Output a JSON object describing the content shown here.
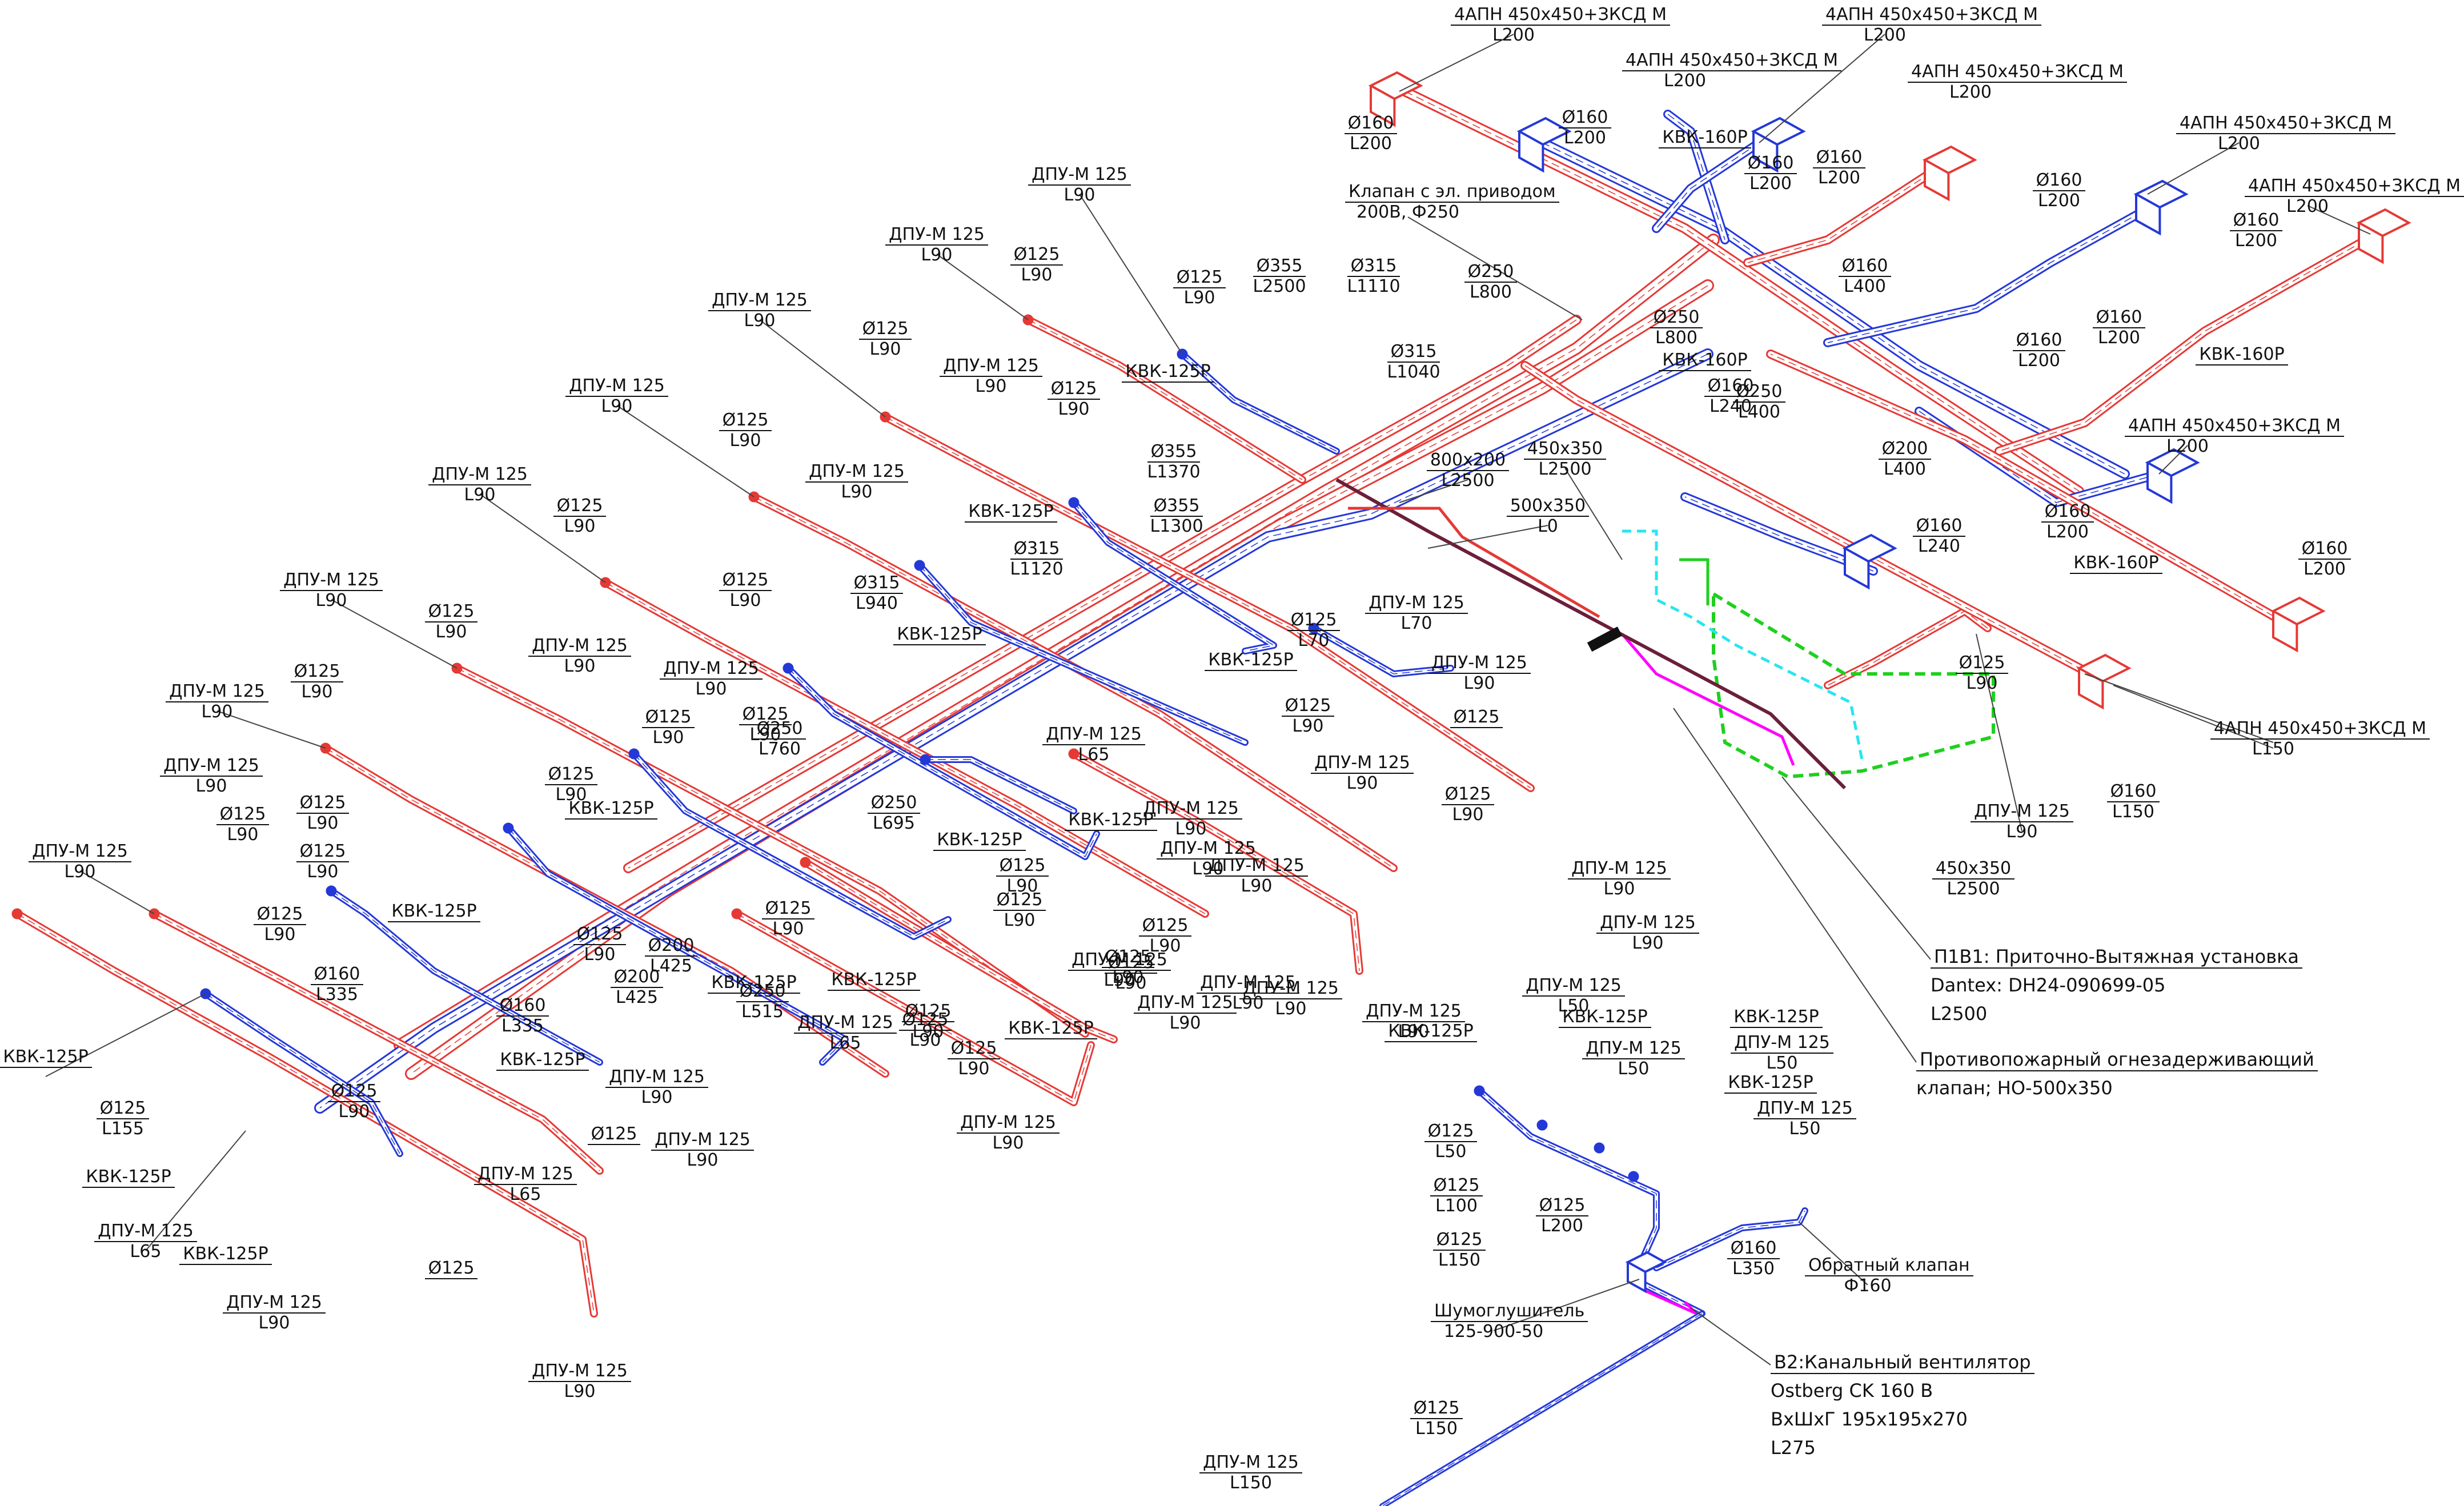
{
  "diagram": {
    "colors": {
      "supply": "#e53935",
      "exhaust": "#2438d8",
      "extra": "#1fd01f",
      "cyan": "#26e6f2",
      "magenta": "#ff00ff",
      "dark": "#6b1f3a"
    },
    "labels": [
      {
        "id": "l01",
        "a": "4АПН 450х450+ЗКСД М",
        "b": "L200"
      },
      {
        "id": "l02",
        "a": "4АПН 450х450+ЗКСД М",
        "b": "L200"
      },
      {
        "id": "l03",
        "a": "4АПН 450х450+ЗКСД М",
        "b": "L200"
      },
      {
        "id": "l04",
        "a": "4АПН 450х450+ЗКСД М",
        "b": "L200"
      },
      {
        "id": "l05",
        "a": "4АПН 450х450+ЗКСД М",
        "b": "L200"
      },
      {
        "id": "l06",
        "a": "4АПН 450х450+ЗКСД М",
        "b": "L200"
      },
      {
        "id": "l07",
        "a": "4АПН 450х450+ЗКСД М",
        "b": "L200"
      },
      {
        "id": "l08",
        "a": "4АПН 450х450+ЗКСД М",
        "b": "L150"
      },
      {
        "id": "l09",
        "a": "Ø160",
        "b": "L200"
      },
      {
        "id": "l10",
        "a": "Ø160",
        "b": "L200"
      },
      {
        "id": "l11",
        "a": "КВК-160Р",
        "b": ""
      },
      {
        "id": "l12",
        "a": "Ø160",
        "b": "L200"
      },
      {
        "id": "l13",
        "a": "Ø160",
        "b": "L200"
      },
      {
        "id": "l14",
        "a": "Ø160",
        "b": "L200"
      },
      {
        "id": "l15",
        "a": "Ø160",
        "b": "L200"
      },
      {
        "id": "l16",
        "a": "Ø160",
        "b": "L400"
      },
      {
        "id": "l17",
        "a": "Ø160",
        "b": "L200"
      },
      {
        "id": "l18",
        "a": "Ø160",
        "b": "L200"
      },
      {
        "id": "l19",
        "a": "КВК-160Р",
        "b": ""
      },
      {
        "id": "l20",
        "a": "Ø200",
        "b": "L400"
      },
      {
        "id": "l21",
        "a": "Ø160",
        "b": "L200"
      },
      {
        "id": "l22",
        "a": "КВК-160Р",
        "b": ""
      },
      {
        "id": "l23",
        "a": "Ø160",
        "b": "L200"
      },
      {
        "id": "l24",
        "a": "Ø160",
        "b": "L240"
      },
      {
        "id": "l25",
        "a": "Ø125",
        "b": "L90"
      },
      {
        "id": "l26",
        "a": "Ø160",
        "b": "L150"
      },
      {
        "id": "l27",
        "a": "ДПУ-М 125",
        "b": "L90"
      },
      {
        "id": "l28",
        "a": "Клапан с эл. приводом",
        "b": "200В, Ф250"
      },
      {
        "id": "l29",
        "a": "Ø355",
        "b": "L2500"
      },
      {
        "id": "l30",
        "a": "Ø315",
        "b": "L1110"
      },
      {
        "id": "l31",
        "a": "Ø250",
        "b": "L800"
      },
      {
        "id": "l32",
        "a": "Ø250",
        "b": "L800"
      },
      {
        "id": "l33",
        "a": "КВК-160Р",
        "b": ""
      },
      {
        "id": "l34",
        "a": "Ø250",
        "b": "L400"
      },
      {
        "id": "l35",
        "a": "Ø160",
        "b": "L240"
      },
      {
        "id": "l36",
        "a": "Ø315",
        "b": "L1040"
      },
      {
        "id": "l37",
        "a": "ДПУ-М 125",
        "b": "L90"
      },
      {
        "id": "l38",
        "a": "ДПУ-М 125",
        "b": "L90"
      },
      {
        "id": "l39",
        "a": "Ø125",
        "b": "L90"
      },
      {
        "id": "l40",
        "a": "Ø125",
        "b": "L90"
      },
      {
        "id": "l41",
        "a": "ДПУ-М 125",
        "b": "L90"
      },
      {
        "id": "l42",
        "a": "Ø125",
        "b": "L90"
      },
      {
        "id": "l43",
        "a": "ДПУ-М 125",
        "b": "L90"
      },
      {
        "id": "l44",
        "a": "Ø125",
        "b": "L90"
      },
      {
        "id": "l45",
        "a": "КВК-125Р",
        "b": ""
      },
      {
        "id": "l46",
        "a": "ДПУ-М 125",
        "b": "L90"
      },
      {
        "id": "l47",
        "a": "Ø125",
        "b": "L90"
      },
      {
        "id": "l48",
        "a": "ДПУ-М 125",
        "b": "L90"
      },
      {
        "id": "l49",
        "a": "Ø125",
        "b": "L90"
      },
      {
        "id": "l50",
        "a": "Ø355",
        "b": "L1370"
      },
      {
        "id": "l51",
        "a": "Ø355",
        "b": "L1300"
      },
      {
        "id": "l52",
        "a": "800х200",
        "b": "L2500"
      },
      {
        "id": "l53",
        "a": "450х350",
        "b": "L2500"
      },
      {
        "id": "l54",
        "a": "500х350",
        "b": "L0"
      },
      {
        "id": "l55",
        "a": "ДПУ-М 125",
        "b": "L90"
      },
      {
        "id": "l56",
        "a": "Ø125",
        "b": "L90"
      },
      {
        "id": "l57",
        "a": "КВК-125Р",
        "b": ""
      },
      {
        "id": "l58",
        "a": "Ø315",
        "b": "L1120"
      },
      {
        "id": "l59",
        "a": "ДПУ-М 125",
        "b": "L90"
      },
      {
        "id": "l60",
        "a": "Ø125",
        "b": "L90"
      },
      {
        "id": "l61",
        "a": "Ø315",
        "b": "L940"
      },
      {
        "id": "l62",
        "a": "КВК-125Р",
        "b": ""
      },
      {
        "id": "l63",
        "a": "ДПУ-М 125",
        "b": "L70"
      },
      {
        "id": "l64",
        "a": "Ø125",
        "b": "L70"
      },
      {
        "id": "l65",
        "a": "ДПУ-М 125",
        "b": "L90"
      },
      {
        "id": "l66",
        "a": "КВК-125Р",
        "b": ""
      },
      {
        "id": "l67",
        "a": "Ø125",
        "b": "L90"
      },
      {
        "id": "l68",
        "a": "ДПУ-М 125",
        "b": "L90"
      },
      {
        "id": "l69",
        "a": "ДПУ-М 125",
        "b": "L90"
      },
      {
        "id": "l70",
        "a": "Ø125",
        "b": "L90"
      },
      {
        "id": "l71",
        "a": "ДПУ-М 125",
        "b": "L90"
      },
      {
        "id": "l72",
        "a": "Ø125",
        "b": "L90"
      },
      {
        "id": "l73",
        "a": "Ø125",
        "b": "L90"
      },
      {
        "id": "l74",
        "a": "Ø250",
        "b": "L760"
      },
      {
        "id": "l75",
        "a": "ДПУ-М 125",
        "b": "L65"
      },
      {
        "id": "l76",
        "a": "ДПУ-М 125",
        "b": "L90"
      },
      {
        "id": "l77",
        "a": "ДПУ-М 125",
        "b": "L90"
      },
      {
        "id": "l78",
        "a": "Ø125",
        "b": "L90"
      },
      {
        "id": "l79",
        "a": "Ø125",
        "b": "L90"
      },
      {
        "id": "l80",
        "a": "КВК-125Р",
        "b": ""
      },
      {
        "id": "l81",
        "a": "Ø250",
        "b": "L695"
      },
      {
        "id": "l82",
        "a": "КВК-125Р",
        "b": ""
      },
      {
        "id": "l83",
        "a": "Ø125",
        "b": "L90"
      },
      {
        "id": "l84",
        "a": "ДПУ-М 125",
        "b": "L90"
      },
      {
        "id": "l85",
        "a": "Ø125",
        "b": "L90"
      },
      {
        "id": "l86",
        "a": "ДПУ-М 125",
        "b": "L90"
      },
      {
        "id": "l87",
        "a": "ДПУ-М 125",
        "b": "L90"
      },
      {
        "id": "l88",
        "a": "Ø125",
        "b": "L90"
      },
      {
        "id": "l89",
        "a": "Ø125",
        "b": "L90"
      },
      {
        "id": "l90",
        "a": "Ø125",
        "b": "L90"
      },
      {
        "id": "l91",
        "a": "КВК-125Р",
        "b": ""
      },
      {
        "id": "l92",
        "a": "Ø125",
        "b": "L90"
      },
      {
        "id": "l93",
        "a": "Ø125",
        "b": "L90"
      },
      {
        "id": "l94",
        "a": "Ø125",
        "b": "L90"
      },
      {
        "id": "l95",
        "a": "ДПУ-М 125",
        "b": "L90"
      },
      {
        "id": "l96",
        "a": "КВК-125Р",
        "b": ""
      },
      {
        "id": "l97",
        "a": "Ø200",
        "b": "L425"
      },
      {
        "id": "l98",
        "a": "Ø200",
        "b": "L425"
      },
      {
        "id": "l99",
        "a": "Ø250",
        "b": "L515"
      },
      {
        "id": "m01",
        "a": "КВК-125Р",
        "b": ""
      },
      {
        "id": "m02",
        "a": "ДПУ-М 125",
        "b": "L65"
      },
      {
        "id": "m03",
        "a": "КВК-125Р",
        "b": ""
      },
      {
        "id": "m04",
        "a": "ДПУ-М 125",
        "b": "L90"
      },
      {
        "id": "m05",
        "a": "ДПУ-М 125",
        "b": "L90"
      },
      {
        "id": "m06",
        "a": "Ø125",
        "b": "L90"
      },
      {
        "id": "m07",
        "a": "Ø160",
        "b": "L335"
      },
      {
        "id": "m08",
        "a": "Ø160",
        "b": "L335"
      },
      {
        "id": "m09",
        "a": "КВК-125Р",
        "b": ""
      },
      {
        "id": "m10",
        "a": "Ø125",
        "b": "L155"
      },
      {
        "id": "m11",
        "a": "Ø125",
        "b": "L90"
      },
      {
        "id": "m12",
        "a": "Ø125",
        "b": ""
      },
      {
        "id": "m13",
        "a": "КВК-125Р",
        "b": ""
      },
      {
        "id": "m14",
        "a": "ДПУ-М 125",
        "b": "L90"
      },
      {
        "id": "m15",
        "a": "ДПУ-М 125",
        "b": "L65"
      },
      {
        "id": "m16",
        "a": "Ø125",
        "b": ""
      },
      {
        "id": "m17",
        "a": "ДПУ-М 125",
        "b": "L90"
      },
      {
        "id": "m18",
        "a": "КВК-125Р",
        "b": ""
      },
      {
        "id": "m19",
        "a": "ДПУ-М 125",
        "b": "L65"
      },
      {
        "id": "m20",
        "a": "КВК-125Р",
        "b": ""
      },
      {
        "id": "m21",
        "a": "Ø125",
        "b": ""
      },
      {
        "id": "m22",
        "a": "ДПУ-М 125",
        "b": "L90"
      },
      {
        "id": "m23",
        "a": "ДПУ-М 125",
        "b": "L90"
      },
      {
        "id": "m24",
        "a": "ДПУ-М 125",
        "b": "L90"
      },
      {
        "id": "m25",
        "a": "ДПУ-М 125",
        "b": "L90"
      },
      {
        "id": "m26",
        "a": "КВК-125Р",
        "b": ""
      },
      {
        "id": "m27",
        "a": "Ø125",
        "b": "L90"
      },
      {
        "id": "m28",
        "a": "ДПУ-М 125",
        "b": "L90"
      },
      {
        "id": "m29",
        "a": "Ø125",
        "b": "L90"
      },
      {
        "id": "m30",
        "a": "ДПУ-М 125",
        "b": "L90"
      },
      {
        "id": "m31",
        "a": "ДПУ-М 125",
        "b": "L90"
      },
      {
        "id": "m32",
        "a": "Ø125",
        "b": "L90"
      },
      {
        "id": "m33",
        "a": "Ø125",
        "b": "L90"
      },
      {
        "id": "m34",
        "a": "Ø125",
        "b": "L90"
      },
      {
        "id": "m35",
        "a": "ДПУ-М 125",
        "b": "L90"
      },
      {
        "id": "m36",
        "a": "450х350",
        "b": "L2500"
      },
      {
        "id": "n01",
        "a": "КВК-125Р",
        "b": ""
      },
      {
        "id": "n02",
        "a": "ДПУ-М 125",
        "b": "L50"
      },
      {
        "id": "n03",
        "a": "КВК-125Р",
        "b": ""
      },
      {
        "id": "n04",
        "a": "КВК-125Р",
        "b": ""
      },
      {
        "id": "n05",
        "a": "ДПУ-М 125",
        "b": "L50"
      },
      {
        "id": "n06",
        "a": "ДПУ-М 125",
        "b": "L50"
      },
      {
        "id": "n07",
        "a": "КВК-125Р",
        "b": ""
      },
      {
        "id": "n08",
        "a": "ДПУ-М 125",
        "b": "L50"
      },
      {
        "id": "n09",
        "a": "Ø125",
        "b": "L50"
      },
      {
        "id": "n10",
        "a": "Ø125",
        "b": "L100"
      },
      {
        "id": "n11",
        "a": "Ø125",
        "b": "L150"
      },
      {
        "id": "n12",
        "a": "Ø125",
        "b": "L200"
      },
      {
        "id": "n13",
        "a": "Ø160",
        "b": "L350"
      },
      {
        "id": "n14",
        "a": "Обратный клапан",
        "b": "Ф160"
      },
      {
        "id": "n15",
        "a": "Шумоглушитель",
        "b": "125-900-50"
      },
      {
        "id": "n16",
        "a": "Ø125",
        "b": "L150"
      },
      {
        "id": "n17",
        "a": "ДПУ-М 125",
        "b": "L150"
      }
    ],
    "notes": [
      {
        "id": "p1",
        "lines": [
          "П1В1: Приточно-Вытяжная установка",
          "Dantex: DH24-090699-05",
          "L2500"
        ]
      },
      {
        "id": "p2",
        "lines": [
          "Противопожарный огнезадерживающий",
          "клапан; НО-500х350"
        ]
      },
      {
        "id": "p3",
        "lines": [
          "В2:Канальный вентилятор",
          "Ostberg CK 160 B",
          "ВхШхГ 195х195х270",
          "L275"
        ]
      }
    ]
  }
}
